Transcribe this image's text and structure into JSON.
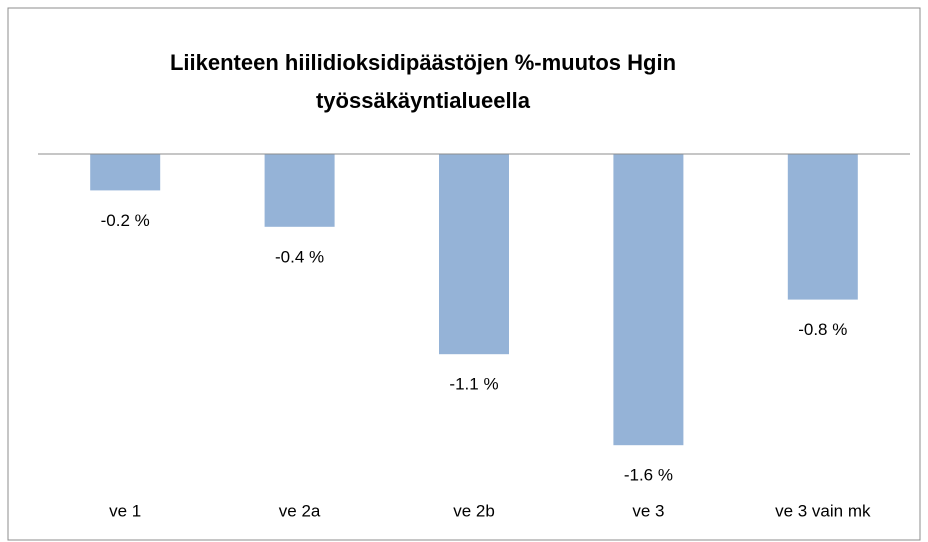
{
  "chart_data": {
    "type": "bar",
    "title": "Liikenteen hiilidioksidipäästöjen %-muutos Hgin työssäkäyntialueella",
    "categories": [
      "ve 1",
      "ve 2a",
      "ve 2b",
      "ve 3",
      "ve 3 vain mk"
    ],
    "values": [
      -0.2,
      -0.4,
      -1.1,
      -1.6,
      -0.8
    ],
    "value_labels": [
      "-0.2 %",
      "-0.4 %",
      "-1.1 %",
      "-1.6 %",
      "-0.8 %"
    ],
    "color": "#95b3d7"
  }
}
